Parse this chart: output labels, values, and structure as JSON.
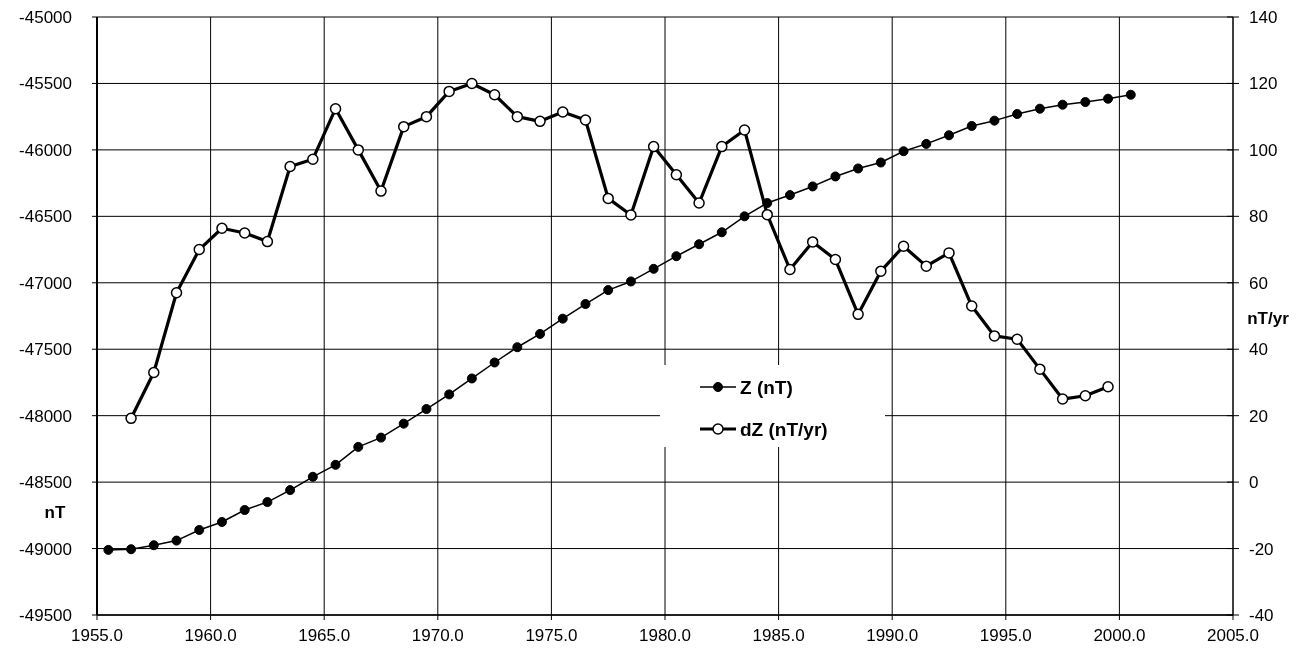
{
  "chart_data": {
    "type": "line",
    "ylabel": "nT",
    "y2label": "nT/yr",
    "xlim": [
      1955,
      2005
    ],
    "xticks": [
      {
        "value": 1955,
        "label": "1955.0"
      },
      {
        "value": 1960,
        "label": "1960.0"
      },
      {
        "value": 1965,
        "label": "1965.0"
      },
      {
        "value": 1970,
        "label": "1970.0"
      },
      {
        "value": 1975,
        "label": "1975.0"
      },
      {
        "value": 1980,
        "label": "1980.0"
      },
      {
        "value": 1985,
        "label": "1985.0"
      },
      {
        "value": 1990,
        "label": "1990.0"
      },
      {
        "value": 1995,
        "label": "1995.0"
      },
      {
        "value": 2000,
        "label": "2000.0"
      },
      {
        "value": 2005,
        "label": "2005.0"
      }
    ],
    "ylim": [
      -49500,
      -45000
    ],
    "yticks": [
      -49500,
      -49000,
      -48500,
      -48000,
      -47500,
      -47000,
      -46500,
      -46000,
      -45500,
      -45000
    ],
    "y2lim": [
      -40,
      140
    ],
    "y2ticks": [
      -40,
      -20,
      0,
      20,
      40,
      60,
      80,
      100,
      120,
      140
    ],
    "grid": true,
    "legend": "center",
    "marker": "circle",
    "line_style": "solid",
    "series": [
      {
        "name": "Z (nT)",
        "color": "#000000",
        "x": [
          1955.5,
          1956.5,
          1957.5,
          1958.5,
          1959.5,
          1960.5,
          1961.5,
          1962.5,
          1963.5,
          1964.5,
          1965.5,
          1966.5,
          1967.5,
          1968.5,
          1969.5,
          1970.5,
          1971.5,
          1972.5,
          1973.5,
          1974.5,
          1975.5,
          1976.5,
          1977.5,
          1978.5,
          1979.5,
          1980.5,
          1981.5,
          1982.5,
          1983.5,
          1984.5,
          1985.5,
          1986.5,
          1987.5,
          1988.5,
          1989.5,
          1990.5,
          1991.5,
          1992.5,
          1993.5,
          1994.5,
          1995.5,
          1996.5,
          1997.5,
          1998.5,
          1999.5,
          2000.5
        ],
        "values": [
          -49010,
          -49005,
          -48975,
          -48940,
          -48860,
          -48800,
          -48710,
          -48650,
          -48560,
          -48460,
          -48370,
          -48235,
          -48165,
          -48060,
          -47950,
          -47840,
          -47720,
          -47600,
          -47485,
          -47385,
          -47270,
          -47160,
          -47055,
          -46990,
          -46895,
          -46800,
          -46710,
          -46620,
          -46500,
          -46400,
          -46340,
          -46275,
          -46200,
          -46140,
          -46095,
          -46010,
          -45955,
          -45890,
          -45820,
          -45780,
          -45730,
          -45690,
          -45660,
          -45640,
          -45615,
          -45585
        ]
      },
      {
        "name": "dZ (nT/yr)",
        "color": "#000000",
        "axis": "y2",
        "x": [
          1956.5,
          1957.5,
          1958.5,
          1959.5,
          1960.5,
          1961.5,
          1962.5,
          1963.5,
          1964.5,
          1965.5,
          1966.5,
          1967.5,
          1968.5,
          1969.5,
          1970.5,
          1971.5,
          1972.5,
          1973.5,
          1974.5,
          1975.5,
          1976.5,
          1977.5,
          1978.5,
          1979.5,
          1980.5,
          1981.5,
          1982.5,
          1983.5,
          1984.5,
          1985.5,
          1986.5,
          1987.5,
          1988.5,
          1989.5,
          1990.5,
          1991.5,
          1992.5,
          1993.5,
          1994.5,
          1995.5,
          1996.5,
          1997.5,
          1998.5,
          1999.5
        ],
        "values": [
          19.2,
          33,
          57,
          70,
          76.4,
          75,
          72.4,
          95,
          97.2,
          112.4,
          100,
          87.6,
          107,
          110,
          117.6,
          120,
          116.6,
          110,
          108.6,
          111.4,
          109,
          85.4,
          80.4,
          101,
          92.5,
          84,
          101,
          106,
          80.5,
          64,
          72.3,
          67,
          50.5,
          63.5,
          71,
          65,
          69,
          53,
          44,
          43,
          34,
          25,
          26,
          28.7
        ]
      }
    ]
  }
}
